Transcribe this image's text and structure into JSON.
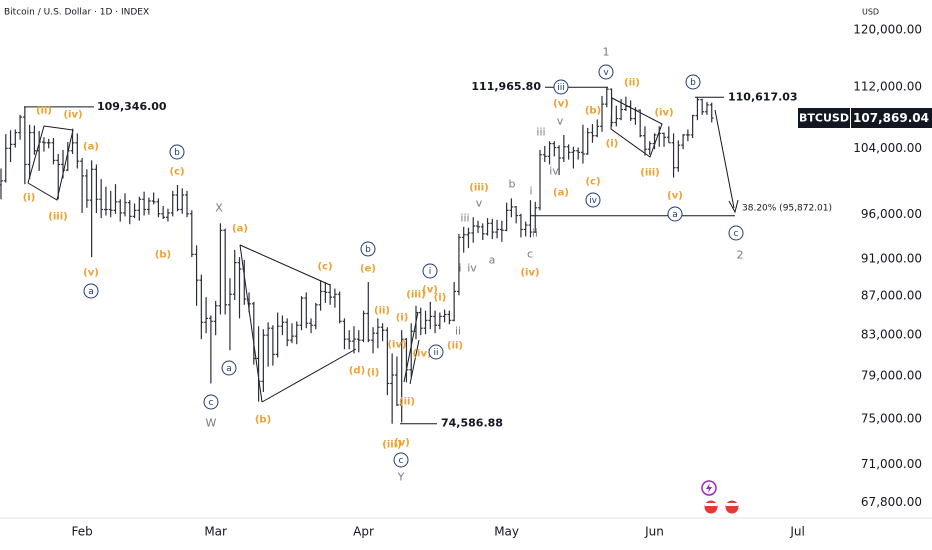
{
  "chart_data": {
    "type": "ohlc",
    "title": "Bitcoin / U.S. Dollar · 1D · INDEX",
    "currency": "USD",
    "symbol": "BTCUSD",
    "last_label": "107,869.04",
    "color": "#2a2e39",
    "log": true,
    "ylim": [
      66400,
      124400
    ],
    "yticks": [
      {
        "value": 120000,
        "label": "120,000.00"
      },
      {
        "value": 112000,
        "label": "112,000.00"
      },
      {
        "value": 104000,
        "label": "104,000.00"
      },
      {
        "value": 96000,
        "label": "96,000.00"
      },
      {
        "value": 91000,
        "label": "91,000.00"
      },
      {
        "value": 87000,
        "label": "87,000.00"
      },
      {
        "value": 83000,
        "label": "83,000.00"
      },
      {
        "value": 79000,
        "label": "79,000.00"
      },
      {
        "value": 75000,
        "label": "75,000.00"
      },
      {
        "value": 71000,
        "label": "71,000.00"
      },
      {
        "value": 67800,
        "label": "67,800.00"
      }
    ],
    "xticks": [
      {
        "value": 17,
        "label": "Feb"
      },
      {
        "value": 45,
        "label": "Mar"
      },
      {
        "value": 76,
        "label": "Apr"
      },
      {
        "value": 106,
        "label": "May"
      },
      {
        "value": 137,
        "label": "Jun"
      },
      {
        "value": 167,
        "label": "Jul"
      }
    ],
    "bars": [
      [
        99500,
        101500,
        97800,
        100000
      ],
      [
        100000,
        105800,
        99800,
        104000
      ],
      [
        104000,
        106300,
        102300,
        104500
      ],
      [
        104500,
        106400,
        104100,
        106000
      ],
      [
        106000,
        108300,
        105100,
        108000
      ],
      [
        108000,
        109346,
        99600,
        102000
      ],
      [
        102000,
        107000,
        100200,
        106000
      ],
      [
        106000,
        106900,
        103200,
        103700
      ],
      [
        103700,
        106200,
        101200,
        104800
      ],
      [
        104800,
        105400,
        103600,
        104700
      ],
      [
        104700,
        105200,
        104000,
        104700
      ],
      [
        104700,
        105300,
        102000,
        102500
      ],
      [
        102500,
        103300,
        97800,
        102000
      ],
      [
        102000,
        103800,
        100300,
        101300
      ],
      [
        101300,
        104800,
        101200,
        103700
      ],
      [
        103700,
        106500,
        103300,
        104700
      ],
      [
        104700,
        105900,
        101500,
        102400
      ],
      [
        102400,
        102800,
        96200,
        100600
      ],
      [
        100600,
        101400,
        96800,
        97700
      ],
      [
        97700,
        102500,
        91200,
        101400
      ],
      [
        101400,
        102000,
        96200,
        97800
      ],
      [
        97800,
        100200,
        95600,
        96600
      ],
      [
        96600,
        99300,
        95900,
        96600
      ],
      [
        96600,
        98800,
        95700,
        96500
      ],
      [
        96500,
        99600,
        96100,
        97500
      ],
      [
        97500,
        97800,
        95200,
        96200
      ],
      [
        96200,
        98500,
        95800,
        97400
      ],
      [
        97400,
        97700,
        94900,
        95800
      ],
      [
        95800,
        97300,
        95600,
        96500
      ],
      [
        96500,
        98100,
        95300,
        97800
      ],
      [
        97800,
        98700,
        95900,
        96600
      ],
      [
        96600,
        98000,
        96000,
        97600
      ],
      [
        97600,
        98600,
        97200,
        97500
      ],
      [
        97500,
        97900,
        95700,
        96100
      ],
      [
        96100,
        97000,
        95500,
        95700
      ],
      [
        95700,
        96700,
        95200,
        96200
      ],
      [
        96200,
        98800,
        95800,
        98300
      ],
      [
        98300,
        99500,
        96400,
        96600
      ],
      [
        96600,
        99100,
        96100,
        98300
      ],
      [
        98300,
        98800,
        95700,
        96100
      ],
      [
        96100,
        96500,
        91200,
        91500
      ],
      [
        91500,
        92500,
        86000,
        88700
      ],
      [
        88700,
        89300,
        82600,
        84300
      ],
      [
        84300,
        86900,
        83200,
        84700
      ],
      [
        84700,
        85000,
        78300,
        84400
      ],
      [
        84400,
        86500,
        83000,
        86000
      ],
      [
        86000,
        95000,
        85100,
        94200
      ],
      [
        94200,
        94400,
        85100,
        86100
      ],
      [
        86100,
        88900,
        81500,
        87200
      ],
      [
        87200,
        92000,
        86600,
        90600
      ],
      [
        90600,
        91200,
        84700,
        89900
      ],
      [
        89900,
        90900,
        86100,
        86700
      ],
      [
        86700,
        87400,
        85300,
        86200
      ],
      [
        86200,
        86400,
        80100,
        80700
      ],
      [
        80700,
        83900,
        76600,
        78500
      ],
      [
        78500,
        83600,
        77500,
        83000
      ],
      [
        83000,
        84300,
        79900,
        83700
      ],
      [
        83700,
        84000,
        80000,
        81100
      ],
      [
        81100,
        85300,
        80800,
        83900
      ],
      [
        83900,
        85000,
        83000,
        84300
      ],
      [
        84300,
        84700,
        81900,
        82500
      ],
      [
        82500,
        84200,
        82200,
        82900
      ],
      [
        82900,
        84400,
        82100,
        84000
      ],
      [
        84000,
        87000,
        83500,
        86800
      ],
      [
        86800,
        87400,
        83700,
        84200
      ],
      [
        84200,
        84700,
        83200,
        84000
      ],
      [
        84000,
        86300,
        83600,
        86100
      ],
      [
        86100,
        88700,
        85500,
        87500
      ],
      [
        87500,
        88500,
        86300,
        87400
      ],
      [
        87400,
        88300,
        86100,
        86900
      ],
      [
        86900,
        87800,
        85800,
        87200
      ],
      [
        87200,
        87500,
        84200,
        84400
      ],
      [
        84400,
        84700,
        81600,
        82600
      ],
      [
        82600,
        83500,
        81600,
        82400
      ],
      [
        82400,
        83900,
        81200,
        82600
      ],
      [
        82600,
        83500,
        81300,
        82500
      ],
      [
        82500,
        85500,
        82300,
        85200
      ],
      [
        85200,
        88500,
        82300,
        82500
      ],
      [
        82500,
        83800,
        81200,
        83200
      ],
      [
        83200,
        84700,
        81700,
        83800
      ],
      [
        83800,
        84200,
        82400,
        83500
      ],
      [
        83500,
        83800,
        77200,
        78300
      ],
      [
        78300,
        81200,
        74586.88,
        79100
      ],
      [
        79100,
        80900,
        76200,
        76300
      ],
      [
        76300,
        83500,
        74700,
        82600
      ],
      [
        82600,
        82700,
        78400,
        79600
      ],
      [
        79600,
        84200,
        78900,
        83400
      ],
      [
        83400,
        86000,
        82600,
        85300
      ],
      [
        85300,
        85800,
        83000,
        83700
      ],
      [
        83700,
        85500,
        83100,
        84500
      ],
      [
        84500,
        86400,
        83600,
        84900
      ],
      [
        84900,
        85500,
        83200,
        84000
      ],
      [
        84000,
        85300,
        83600,
        84900
      ],
      [
        84900,
        85600,
        84300,
        85100
      ],
      [
        85100,
        85500,
        84100,
        84500
      ],
      [
        84500,
        88500,
        84400,
        87500
      ],
      [
        87500,
        93800,
        87100,
        93400
      ],
      [
        93400,
        94600,
        91700,
        93700
      ],
      [
        93700,
        94500,
        92200,
        93900
      ],
      [
        93900,
        95700,
        92800,
        94700
      ],
      [
        94700,
        95300,
        93900,
        94600
      ],
      [
        94600,
        95000,
        93100,
        93800
      ],
      [
        93800,
        95600,
        93600,
        95000
      ],
      [
        95000,
        95500,
        93200,
        94000
      ],
      [
        94000,
        95400,
        93300,
        94300
      ],
      [
        94300,
        95300,
        92900,
        94200
      ],
      [
        94200,
        97400,
        94100,
        96500
      ],
      [
        96500,
        97900,
        95700,
        96900
      ],
      [
        96900,
        97000,
        95000,
        95900
      ],
      [
        95900,
        96100,
        93400,
        94300
      ],
      [
        94300,
        95200,
        93500,
        94800
      ],
      [
        94800,
        97700,
        93400,
        94000
      ],
      [
        94000,
        97500,
        93900,
        96800
      ],
      [
        96800,
        103800,
        96500,
        103200
      ],
      [
        103200,
        104300,
        102300,
        103000
      ],
      [
        103000,
        104900,
        102000,
        104600
      ],
      [
        104600,
        104900,
        103000,
        104100
      ],
      [
        104100,
        104400,
        100700,
        102800
      ],
      [
        102800,
        105700,
        102300,
        104200
      ],
      [
        104200,
        104500,
        102600,
        103500
      ],
      [
        103500,
        104200,
        101500,
        103700
      ],
      [
        103700,
        104100,
        102600,
        103500
      ],
      [
        103500,
        107000,
        102100,
        103300
      ],
      [
        103300,
        106600,
        103200,
        106000
      ],
      [
        106000,
        107100,
        104700,
        105600
      ],
      [
        105600,
        107700,
        105400,
        106800
      ],
      [
        106800,
        110800,
        106100,
        109700
      ],
      [
        109700,
        111965.8,
        109300,
        111700
      ],
      [
        111700,
        111800,
        106800,
        107300
      ],
      [
        107300,
        109500,
        106800,
        107800
      ],
      [
        107800,
        110400,
        107600,
        109000
      ],
      [
        109000,
        110700,
        108800,
        109400
      ],
      [
        109400,
        110200,
        107500,
        107800
      ],
      [
        107800,
        109300,
        107000,
        108900
      ],
      [
        108900,
        109000,
        105400,
        105600
      ],
      [
        105600,
        106800,
        103100,
        103900
      ],
      [
        103900,
        104900,
        103200,
        104600
      ],
      [
        104600,
        105900,
        103900,
        105700
      ],
      [
        105700,
        106800,
        104200,
        105900
      ],
      [
        105900,
        106000,
        104200,
        105400
      ],
      [
        105400,
        106800,
        104700,
        104700
      ],
      [
        104700,
        105900,
        100400,
        101600
      ],
      [
        101600,
        105000,
        101100,
        104400
      ],
      [
        104400,
        105800,
        103900,
        105700
      ],
      [
        105700,
        106400,
        104900,
        105700
      ],
      [
        105700,
        108300,
        105300,
        108200
      ],
      [
        108200,
        110617.03,
        107600,
        110300
      ],
      [
        110300,
        110400,
        108300,
        108700
      ],
      [
        108700,
        110000,
        108300,
        109600
      ],
      [
        109600,
        109900,
        107300,
        107869.04
      ]
    ],
    "levels": [
      {
        "value": 109346,
        "label": "109,346.00"
      },
      {
        "value": 111965.8,
        "label": "111,965.80"
      },
      {
        "value": 74586.88,
        "label": "74,586.88"
      },
      {
        "value": 110617.03,
        "label": "110,617.03"
      }
    ],
    "fib": {
      "value": 95872.01,
      "label": "38.20% (95,872.01)"
    },
    "wave_labels": [
      {
        "text": "(ii)",
        "color": "#f0a030"
      },
      {
        "text": "(iv)",
        "color": "#f0a030"
      },
      {
        "text": "(i)",
        "color": "#f0a030"
      },
      {
        "text": "(iii)",
        "color": "#f0a030"
      },
      {
        "text": "(a)",
        "color": "#f0a030"
      },
      {
        "text": "(c)",
        "color": "#f0a030"
      },
      {
        "text": "b",
        "color": "#1e3a6e",
        "shape": "circle"
      },
      {
        "text": "(b)",
        "color": "#f0a030"
      },
      {
        "text": "(v)",
        "color": "#f0a030"
      },
      {
        "text": "a",
        "color": "#1e3a6e",
        "shape": "circle"
      },
      {
        "text": "X",
        "color": "#787b86"
      },
      {
        "text": "(a)",
        "color": "#f0a030"
      },
      {
        "text": "a",
        "color": "#1e3a6e",
        "shape": "circle"
      },
      {
        "text": "c",
        "color": "#1e3a6e",
        "shape": "circle"
      },
      {
        "text": "W",
        "color": "#787b86"
      },
      {
        "text": "(b)",
        "color": "#f0a030"
      },
      {
        "text": "(c)",
        "color": "#f0a030"
      },
      {
        "text": "b",
        "color": "#1e3a6e",
        "shape": "circle"
      },
      {
        "text": "(e)",
        "color": "#f0a030"
      },
      {
        "text": "(d)",
        "color": "#f0a030"
      },
      {
        "text": "(i)",
        "color": "#f0a030"
      },
      {
        "text": "(ii)",
        "color": "#f0a030"
      },
      {
        "text": "(iv)",
        "color": "#f0a030"
      },
      {
        "text": "(i)",
        "color": "#f0a030"
      },
      {
        "text": "(ii)",
        "color": "#f0a030"
      },
      {
        "text": "(iii)",
        "color": "#f0a030"
      },
      {
        "text": "(v)",
        "color": "#f0a030"
      },
      {
        "text": "c",
        "color": "#1e3a6e",
        "shape": "circle"
      },
      {
        "text": "Y",
        "color": "#787b86"
      },
      {
        "text": "(iii)",
        "color": "#f0a030"
      },
      {
        "text": "(v)",
        "color": "#f0a030"
      },
      {
        "text": "i",
        "color": "#1e3a6e",
        "shape": "circle"
      },
      {
        "text": "(i)",
        "color": "#f0a030"
      },
      {
        "text": "(iv)",
        "color": "#f0a030"
      },
      {
        "text": "ii",
        "color": "#1e3a6e",
        "shape": "circle"
      },
      {
        "text": "(ii)",
        "color": "#f0a030"
      },
      {
        "text": "ii",
        "color": "#787b86"
      },
      {
        "text": "i",
        "color": "#787b86"
      },
      {
        "text": "iii",
        "color": "#787b86"
      },
      {
        "text": "iv",
        "color": "#787b86"
      },
      {
        "text": "(iii)",
        "color": "#f0a030"
      },
      {
        "text": "v",
        "color": "#787b86"
      },
      {
        "text": "a",
        "color": "#787b86"
      },
      {
        "text": "b",
        "color": "#787b86"
      },
      {
        "text": "c",
        "color": "#787b86"
      },
      {
        "text": "(iv)",
        "color": "#f0a030"
      },
      {
        "text": "ii",
        "color": "#787b86"
      },
      {
        "text": "i",
        "color": "#787b86"
      },
      {
        "text": "(a)",
        "color": "#f0a030"
      },
      {
        "text": "iii",
        "color": "#787b86"
      },
      {
        "text": "iv",
        "color": "#787b86"
      },
      {
        "text": "v",
        "color": "#787b86"
      },
      {
        "text": "(v)",
        "color": "#f0a030"
      },
      {
        "text": "iii",
        "color": "#1e3a6e",
        "shape": "circle"
      },
      {
        "text": "(b)",
        "color": "#f0a030"
      },
      {
        "text": "(c)",
        "color": "#f0a030"
      },
      {
        "text": "iv",
        "color": "#1e3a6e",
        "shape": "circle"
      },
      {
        "text": "(i)",
        "color": "#f0a030"
      },
      {
        "text": "v",
        "color": "#1e3a6e",
        "shape": "circle"
      },
      {
        "text": "1",
        "color": "#787b86"
      },
      {
        "text": "(ii)",
        "color": "#f0a030"
      },
      {
        "text": "(iii)",
        "color": "#f0a030"
      },
      {
        "text": "(iv)",
        "color": "#f0a030"
      },
      {
        "text": "b",
        "color": "#1e3a6e",
        "shape": "circle"
      },
      {
        "text": "(v)",
        "color": "#f0a030"
      },
      {
        "text": "a",
        "color": "#1e3a6e",
        "shape": "circle"
      },
      {
        "text": "c",
        "color": "#1e3a6e",
        "shape": "circle"
      },
      {
        "text": "2",
        "color": "#787b86"
      }
    ]
  }
}
